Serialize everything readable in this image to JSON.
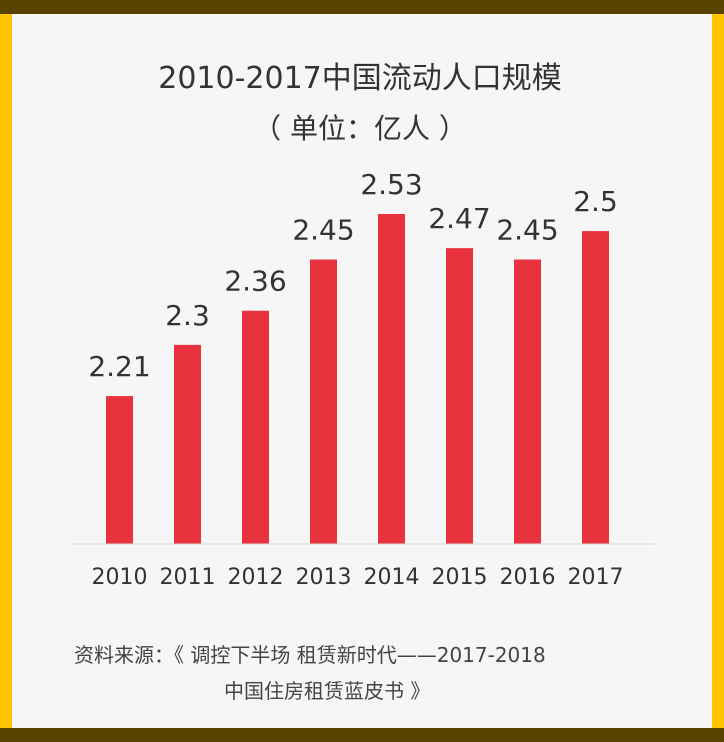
{
  "chart_data": {
    "type": "bar",
    "title": "2010-2017中国流动人口规模",
    "subtitle": "（ 单位：亿人 ）",
    "categories": [
      "2010",
      "2011",
      "2012",
      "2013",
      "2014",
      "2015",
      "2016",
      "2017"
    ],
    "values": [
      2.21,
      2.3,
      2.36,
      2.45,
      2.53,
      2.47,
      2.45,
      2.5
    ],
    "value_labels": [
      "2.21",
      "2.3",
      "2.36",
      "2.45",
      "2.53",
      "2.47",
      "2.45",
      "2.5"
    ],
    "ylim": [
      1.95,
      2.53
    ],
    "bar_color": "#e8333f",
    "grid": false
  },
  "source": {
    "line1": "资料来源：《 调控下半场 租赁新时代——2017-2018",
    "line2": "中国住房租赁蓝皮书 》"
  },
  "colors": {
    "frame": "#ffc400",
    "frame_edge": "#5a4200",
    "background": "#f6f6f6",
    "text": "#333333"
  }
}
